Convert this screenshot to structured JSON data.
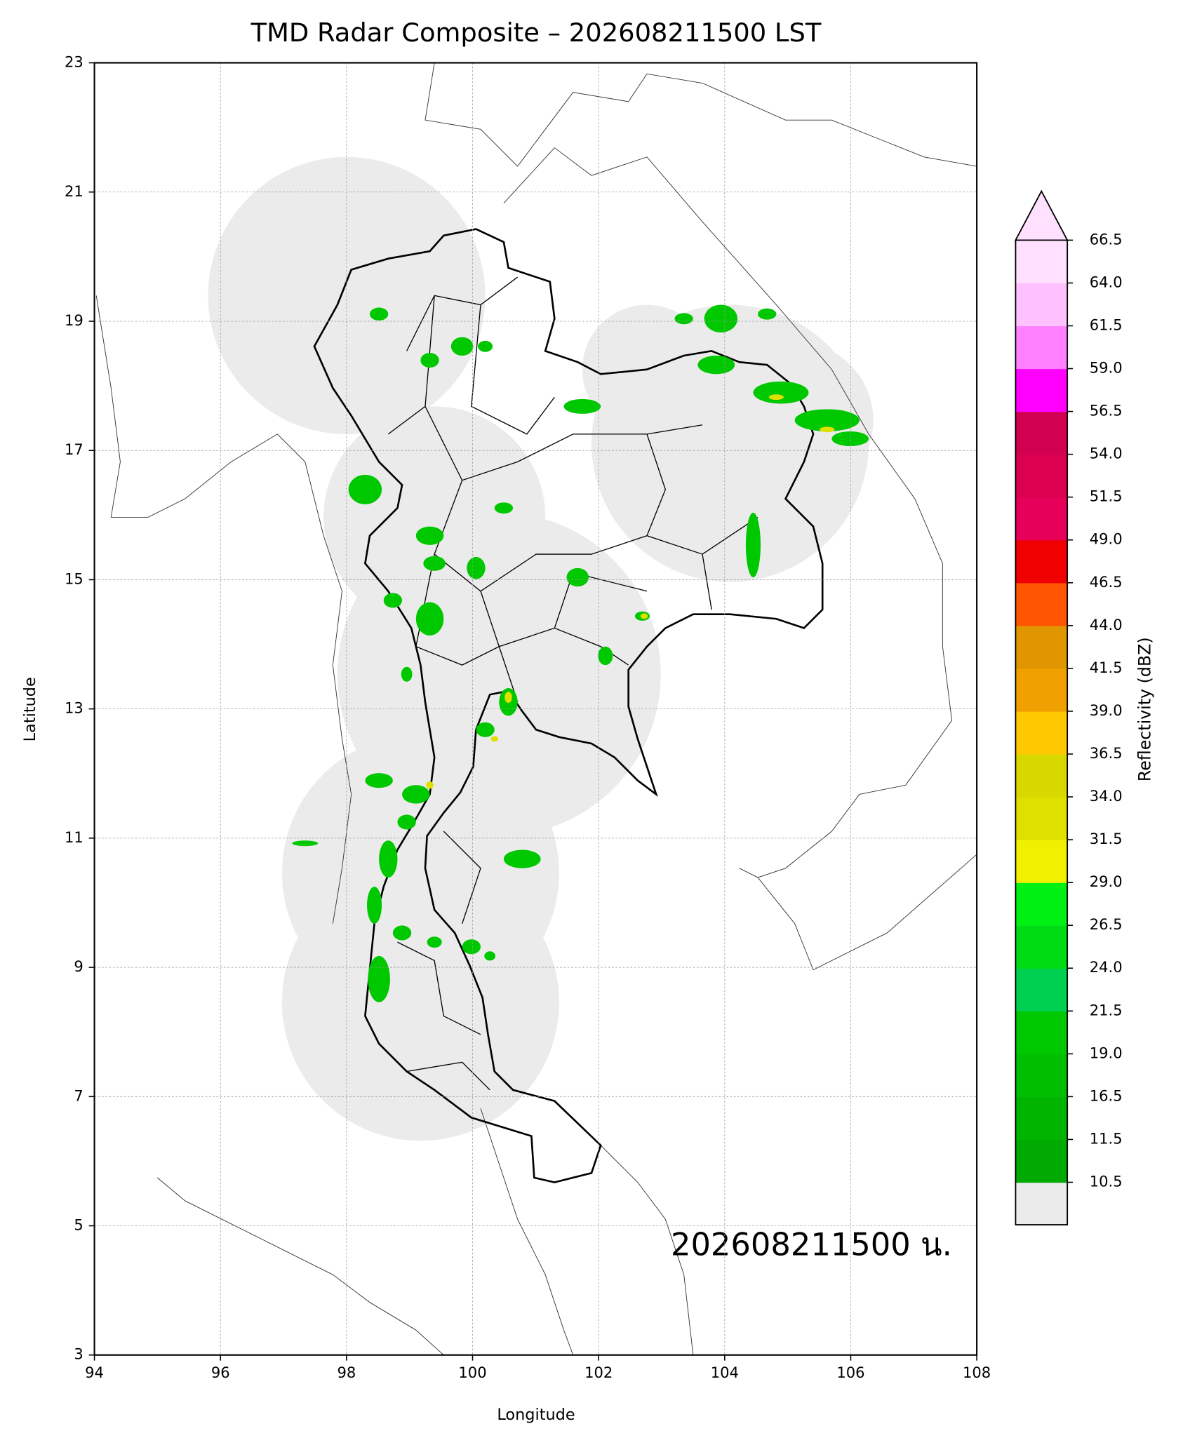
{
  "chart_data": {
    "type": "map",
    "title": "TMD Radar Composite – 202608211500 LST",
    "xlabel": "Longitude",
    "ylabel": "Latitude",
    "xlim": [
      94,
      108
    ],
    "ylim": [
      3,
      23
    ],
    "xticks": [
      94,
      96,
      98,
      100,
      102,
      104,
      106,
      108
    ],
    "yticks": [
      3,
      5,
      7,
      9,
      11,
      13,
      15,
      17,
      19,
      21,
      23
    ],
    "grid": true,
    "annotation": "202608211500 น.",
    "colorbar": {
      "label": "Reflectivity (dBZ)",
      "ticks": [
        10.5,
        11.5,
        16.5,
        {
          "value": 19,
          "label": "19.0"
        },
        21.5,
        {
          "value": 24,
          "label": "24.0"
        },
        26.5,
        {
          "value": 29,
          "label": "29.0"
        },
        31.5,
        {
          "value": 34,
          "label": "34.0"
        },
        36.5,
        {
          "value": 39,
          "label": "39.0"
        },
        41.5,
        {
          "value": 44,
          "label": "44.0"
        },
        46.5,
        {
          "value": 49,
          "label": "49.0"
        },
        51.5,
        {
          "value": 54,
          "label": "54.0"
        },
        56.5,
        {
          "value": 59,
          "label": "59.0"
        },
        61.5,
        {
          "value": 64,
          "label": "64.0"
        },
        66.5
      ],
      "colors": [
        "#00aa00",
        "#00b400",
        "#00be00",
        "#00c800",
        "#00d050",
        "#00dc14",
        "#00f014",
        "#f0f000",
        "#e0e000",
        "#d8d800",
        "#ffc800",
        "#f0a000",
        "#e09600",
        "#ff5500",
        "#f00000",
        "#e6005a",
        "#dc0050",
        "#d20050",
        "#ff00ff",
        "#ff80ff",
        "#ffc0ff",
        "#ffe0ff"
      ],
      "under_color": "#ebebeb",
      "over_color": "#ffe0ff",
      "extend": "max"
    }
  }
}
